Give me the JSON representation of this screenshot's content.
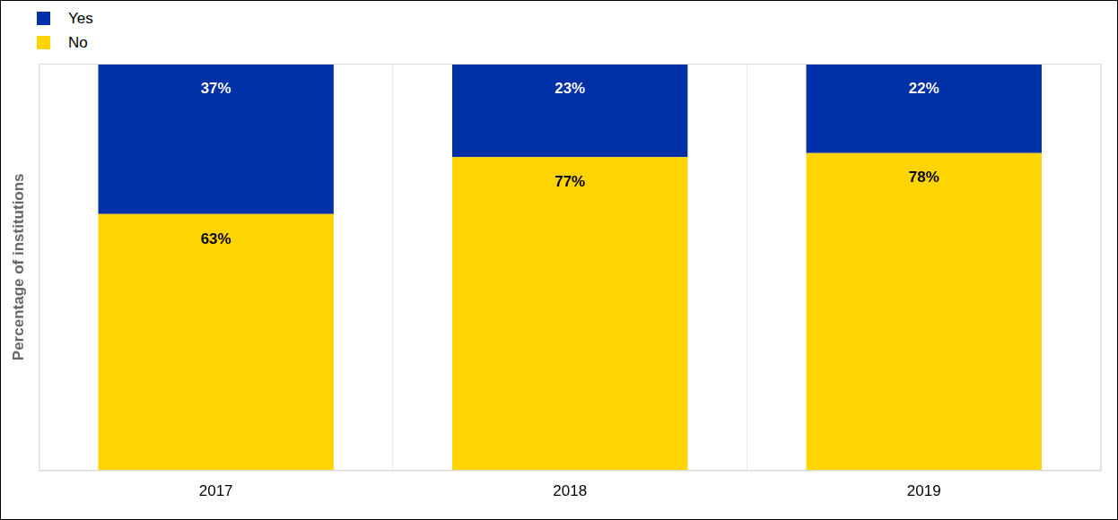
{
  "chart_data": {
    "type": "bar",
    "stacked": true,
    "y_label": "Percentage of institutions",
    "categories": [
      "2017",
      "2018",
      "2019"
    ],
    "series": [
      {
        "name": "Yes",
        "color": "#0031a7",
        "values": [
          37,
          23,
          22
        ],
        "value_labels": [
          "37%",
          "23%",
          "22%"
        ]
      },
      {
        "name": "No",
        "color": "#ffd400",
        "values": [
          63,
          77,
          78
        ],
        "value_labels": [
          "63%",
          "77%",
          "78%"
        ]
      }
    ],
    "ylim": [
      0,
      100
    ],
    "legend": "top-left",
    "data_labels": true,
    "tick_labels": "x",
    "grid": "x"
  }
}
